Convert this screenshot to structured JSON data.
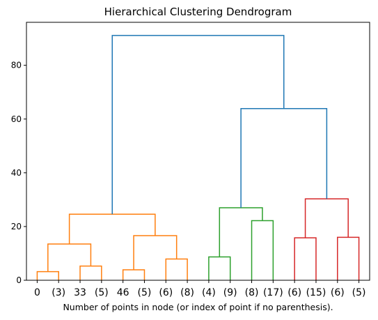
{
  "chart_data": {
    "type": "dendrogram",
    "title": "Hierarchical Clustering Dendrogram",
    "xlabel": "Number of points in node (or index of point if no parenthesis).",
    "ylabel": "",
    "ylim": [
      0,
      96
    ],
    "yticks": [
      0,
      20,
      40,
      60,
      80
    ],
    "leaf_labels": [
      "0",
      "(3)",
      "33",
      "(5)",
      "46",
      "(5)",
      "(6)",
      "(8)",
      "(4)",
      "(9)",
      "(8)",
      "(17)",
      "(6)",
      "(15)",
      "(6)",
      "(5)"
    ],
    "above_threshold_color": "#1f77b4",
    "links": [
      {
        "a": 0,
        "b": 1,
        "height": 3.2,
        "color": "#ff7f0e"
      },
      {
        "a": 2,
        "b": 3,
        "height": 5.3,
        "color": "#ff7f0e"
      },
      {
        "a": 4,
        "b": 5,
        "height": 3.9,
        "color": "#ff7f0e"
      },
      {
        "a": 6,
        "b": 7,
        "height": 7.9,
        "color": "#ff7f0e"
      },
      {
        "a": 8,
        "b": 9,
        "height": 8.7,
        "color": "#2ca02c"
      },
      {
        "a": 10,
        "b": 11,
        "height": 22.2,
        "color": "#2ca02c"
      },
      {
        "a": 12,
        "b": 13,
        "height": 15.8,
        "color": "#d62728"
      },
      {
        "a": 14,
        "b": 15,
        "height": 16.0,
        "color": "#d62728"
      },
      {
        "a": 16,
        "b": 17,
        "height": 13.5,
        "color": "#ff7f0e"
      },
      {
        "a": 18,
        "b": 19,
        "height": 16.6,
        "color": "#ff7f0e"
      },
      {
        "a": 24,
        "b": 25,
        "height": 24.6,
        "color": "#ff7f0e"
      },
      {
        "a": 20,
        "b": 21,
        "height": 27.0,
        "color": "#2ca02c"
      },
      {
        "a": 22,
        "b": 23,
        "height": 30.3,
        "color": "#d62728"
      },
      {
        "a": 27,
        "b": 28,
        "height": 63.9,
        "color": "#1f77b4"
      },
      {
        "a": 26,
        "b": 29,
        "height": 91.1,
        "color": "#1f77b4"
      }
    ]
  }
}
